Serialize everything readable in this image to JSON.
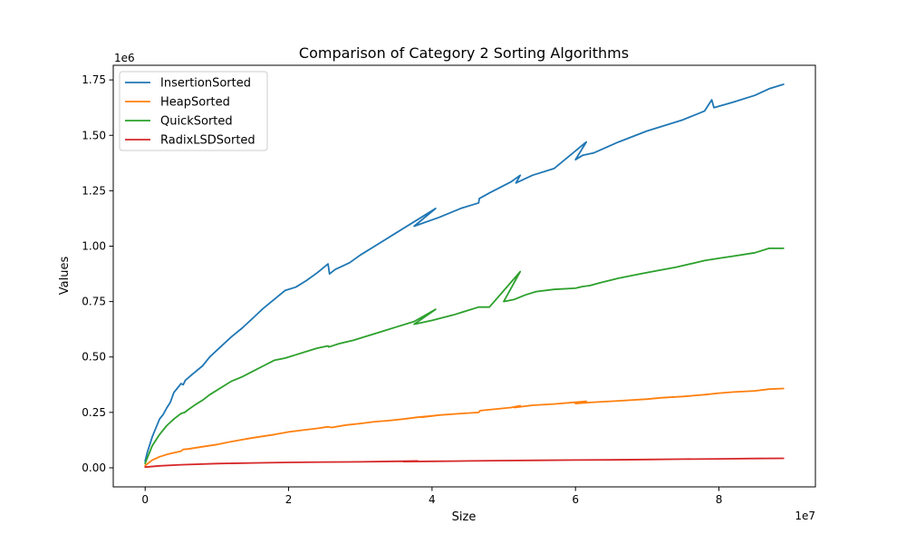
{
  "chart_data": {
    "type": "line",
    "title": "Comparison of Category 2 Sorting Algorithms",
    "xlabel": "Size",
    "ylabel": "Values",
    "x_offset_label": "1e7",
    "y_offset_label": "1e6",
    "xlim": [
      -4450000,
      93450000
    ],
    "ylim": [
      -86000,
      1816000
    ],
    "x_ticks": [
      0,
      20000000,
      40000000,
      60000000,
      80000000
    ],
    "x_tick_labels": [
      "0",
      "2",
      "4",
      "6",
      "8"
    ],
    "y_ticks": [
      0,
      250000,
      500000,
      750000,
      1000000,
      1250000,
      1500000,
      1750000
    ],
    "y_tick_labels": [
      "0.00",
      "0.25",
      "0.50",
      "0.75",
      "1.00",
      "1.25",
      "1.50",
      "1.75"
    ],
    "grid": false,
    "legend_position": "top-left",
    "series": [
      {
        "name": "InsertionSorted",
        "color": "#1f77b4",
        "x": [
          0,
          300000,
          1000000,
          2000000,
          2500000,
          3000000,
          3500000,
          4000000,
          4500000,
          5000000,
          5300000,
          5600000,
          6500000,
          8000000,
          9000000,
          10500000,
          12000000,
          13500000,
          15000000,
          16500000,
          18000000,
          19500000,
          21000000,
          22500000,
          24000000,
          25500000,
          25700000,
          26500000,
          28500000,
          30000000,
          33000000,
          35000000,
          38000000,
          40500000,
          37500000,
          41000000,
          44000000,
          46500000,
          46600000,
          48000000,
          51000000,
          52300000,
          51700000,
          54000000,
          57000000,
          61500000,
          60000000,
          61000000,
          62500000,
          66000000,
          70000000,
          72000000,
          75000000,
          78000000,
          79000000,
          79300000,
          82000000,
          85000000,
          87000000,
          89000000
        ],
        "y": [
          30000,
          70000,
          140000,
          220000,
          240000,
          270000,
          295000,
          340000,
          360000,
          380000,
          375000,
          395000,
          420000,
          460000,
          500000,
          545000,
          590000,
          630000,
          675000,
          720000,
          760000,
          800000,
          815000,
          845000,
          880000,
          920000,
          875000,
          895000,
          925000,
          960000,
          1020000,
          1060000,
          1120000,
          1170000,
          1090000,
          1130000,
          1170000,
          1195000,
          1215000,
          1240000,
          1290000,
          1320000,
          1285000,
          1320000,
          1350000,
          1470000,
          1390000,
          1410000,
          1420000,
          1470000,
          1520000,
          1540000,
          1570000,
          1610000,
          1660000,
          1625000,
          1650000,
          1680000,
          1710000,
          1730000
        ]
      },
      {
        "name": "HeapSorted",
        "color": "#ff7f0e",
        "x": [
          0,
          1000000,
          2000000,
          3000000,
          4000000,
          5000000,
          5300000,
          6000000,
          8000000,
          10000000,
          12000000,
          14000000,
          16000000,
          18000000,
          20000000,
          22000000,
          24000000,
          25500000,
          26000000,
          28000000,
          30000000,
          32000000,
          34000000,
          36000000,
          38000000,
          40500000,
          38500000,
          41000000,
          44000000,
          46500000,
          46700000,
          48000000,
          51000000,
          52300000,
          51500000,
          54000000,
          57000000,
          61500000,
          60000000,
          62000000,
          66000000,
          70000000,
          72000000,
          75000000,
          78000000,
          80000000,
          82000000,
          85000000,
          87000000,
          89000000
        ],
        "y": [
          10000,
          35000,
          50000,
          60000,
          68000,
          75000,
          83000,
          85000,
          95000,
          105000,
          118000,
          130000,
          140000,
          150000,
          162000,
          170000,
          178000,
          185000,
          182000,
          193000,
          200000,
          208000,
          213000,
          220000,
          228000,
          236000,
          228000,
          238000,
          245000,
          250000,
          258000,
          262000,
          272000,
          280000,
          272000,
          282000,
          288000,
          300000,
          290000,
          295000,
          302000,
          310000,
          316000,
          322000,
          330000,
          337000,
          342000,
          347000,
          355000,
          358000
        ]
      },
      {
        "name": "QuickSorted",
        "color": "#2ca02c",
        "x": [
          0,
          300000,
          1000000,
          2000000,
          2500000,
          3000000,
          3500000,
          4000000,
          5000000,
          5500000,
          6000000,
          7000000,
          8000000,
          9000000,
          10500000,
          12000000,
          13500000,
          15000000,
          16500000,
          18000000,
          19500000,
          21000000,
          22500000,
          24000000,
          25500000,
          25600000,
          27000000,
          29000000,
          31000000,
          33000000,
          35000000,
          37500000,
          40500000,
          37500000,
          40000000,
          43000000,
          46500000,
          48000000,
          52300000,
          50000000,
          51500000,
          53000000,
          54500000,
          57000000,
          60000000,
          61000000,
          62000000,
          63500000,
          66000000,
          69000000,
          71500000,
          74000000,
          78000000,
          80000000,
          82000000,
          85000000,
          87000000,
          89000000
        ],
        "y": [
          20000,
          45000,
          100000,
          150000,
          170000,
          190000,
          205000,
          220000,
          245000,
          250000,
          262000,
          285000,
          305000,
          330000,
          360000,
          390000,
          410000,
          435000,
          460000,
          485000,
          495000,
          510000,
          525000,
          540000,
          550000,
          545000,
          560000,
          575000,
          595000,
          615000,
          635000,
          660000,
          715000,
          648000,
          665000,
          690000,
          725000,
          725000,
          885000,
          750000,
          760000,
          780000,
          795000,
          805000,
          810000,
          818000,
          822000,
          835000,
          855000,
          875000,
          890000,
          905000,
          935000,
          945000,
          955000,
          970000,
          990000,
          990000
        ]
      },
      {
        "name": "RadixLSDSorted",
        "color": "#d62728",
        "x": [
          0,
          2000000,
          5000000,
          10000000,
          15000000,
          20000000,
          25000000,
          30000000,
          35000000,
          38000000,
          36000000,
          40000000,
          45000000,
          50000000,
          55000000,
          60000000,
          65000000,
          70000000,
          75000000,
          80000000,
          85000000,
          89000000
        ],
        "y": [
          3000,
          9000,
          14000,
          19000,
          22000,
          24500,
          26000,
          27000,
          29500,
          31000,
          28000,
          29500,
          31000,
          32500,
          34000,
          35000,
          36000,
          37500,
          39000,
          40500,
          42000,
          43000
        ]
      }
    ]
  }
}
